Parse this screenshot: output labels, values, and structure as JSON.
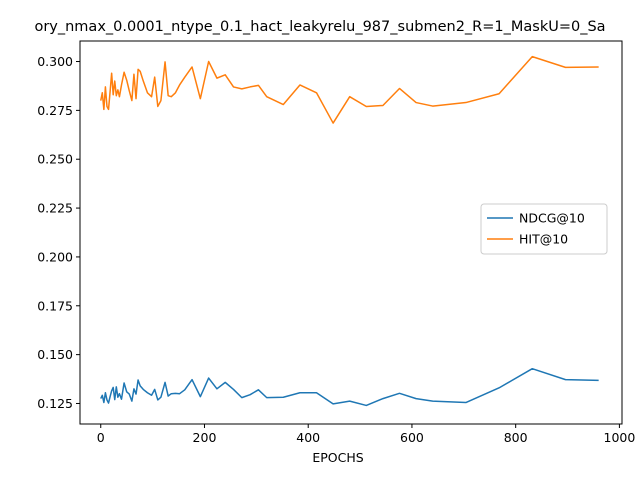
{
  "chart_data": {
    "type": "line",
    "title": "ory_nmax_0.0001_ntype_0.1_hact_leakyrelu_987_submen2_R=1_MaskU=0_Sa",
    "xlabel": "EPOCHS",
    "ylabel": "",
    "xlim": [
      -40,
      1005
    ],
    "ylim": [
      0.1145,
      0.3105
    ],
    "xticks": [
      0,
      200,
      400,
      600,
      800,
      1000
    ],
    "yticks": [
      0.125,
      0.15,
      0.175,
      0.2,
      0.225,
      0.25,
      0.275,
      0.3
    ],
    "xtick_labels": [
      "0",
      "200",
      "400",
      "600",
      "800",
      "1000"
    ],
    "ytick_labels": [
      "0.125",
      "0.150",
      "0.175",
      "0.200",
      "0.225",
      "0.250",
      "0.275",
      "0.300"
    ],
    "grid": false,
    "legend_position": "center-right",
    "series": [
      {
        "name": "NDCG@10",
        "color": "#1f77b4",
        "x": [
          0,
          3,
          6,
          9,
          12,
          15,
          18,
          21,
          24,
          27,
          30,
          33,
          36,
          40,
          45,
          50,
          55,
          60,
          64,
          68,
          72,
          76,
          82,
          90,
          98,
          104,
          110,
          116,
          124,
          130,
          136,
          144,
          152,
          162,
          176,
          192,
          208,
          224,
          240,
          256,
          272,
          288,
          304,
          320,
          352,
          384,
          416,
          448,
          480,
          512,
          544,
          576,
          608,
          640,
          704,
          768,
          832,
          896,
          960
        ],
        "y": [
          0.1275,
          0.1292,
          0.1255,
          0.1305,
          0.1268,
          0.1252,
          0.1285,
          0.1315,
          0.1332,
          0.127,
          0.1335,
          0.1282,
          0.13,
          0.1272,
          0.1355,
          0.131,
          0.1298,
          0.1262,
          0.1325,
          0.1298,
          0.137,
          0.134,
          0.1322,
          0.1305,
          0.1292,
          0.1322,
          0.1268,
          0.1282,
          0.1358,
          0.1288,
          0.13,
          0.1302,
          0.13,
          0.132,
          0.1372,
          0.1285,
          0.138,
          0.1325,
          0.1358,
          0.1322,
          0.128,
          0.1295,
          0.132,
          0.128,
          0.1282,
          0.1305,
          0.1305,
          0.1248,
          0.1262,
          0.124,
          0.1275,
          0.1302,
          0.1275,
          0.1262,
          0.1255,
          0.133,
          0.1428,
          0.1372,
          0.1368
        ]
      },
      {
        "name": "HIT@10",
        "color": "#ff7f0e",
        "x": [
          0,
          3,
          6,
          9,
          12,
          15,
          18,
          21,
          24,
          27,
          30,
          33,
          36,
          40,
          45,
          50,
          55,
          60,
          64,
          68,
          72,
          76,
          82,
          90,
          98,
          104,
          110,
          116,
          124,
          130,
          136,
          144,
          152,
          162,
          176,
          192,
          208,
          224,
          240,
          256,
          272,
          288,
          304,
          320,
          352,
          384,
          416,
          448,
          480,
          512,
          544,
          576,
          608,
          640,
          704,
          768,
          832,
          896,
          960
        ],
        "y": [
          0.28,
          0.284,
          0.2755,
          0.287,
          0.277,
          0.2755,
          0.2845,
          0.294,
          0.283,
          0.29,
          0.2825,
          0.2855,
          0.282,
          0.288,
          0.2945,
          0.2905,
          0.285,
          0.28,
          0.2935,
          0.281,
          0.296,
          0.295,
          0.29,
          0.284,
          0.282,
          0.292,
          0.277,
          0.28,
          0.2998,
          0.2825,
          0.282,
          0.284,
          0.288,
          0.292,
          0.2972,
          0.281,
          0.3,
          0.2915,
          0.2932,
          0.287,
          0.286,
          0.287,
          0.2878,
          0.282,
          0.278,
          0.288,
          0.284,
          0.2685,
          0.282,
          0.277,
          0.2775,
          0.2862,
          0.279,
          0.2772,
          0.279,
          0.2835,
          0.3025,
          0.297,
          0.2972
        ]
      }
    ]
  }
}
